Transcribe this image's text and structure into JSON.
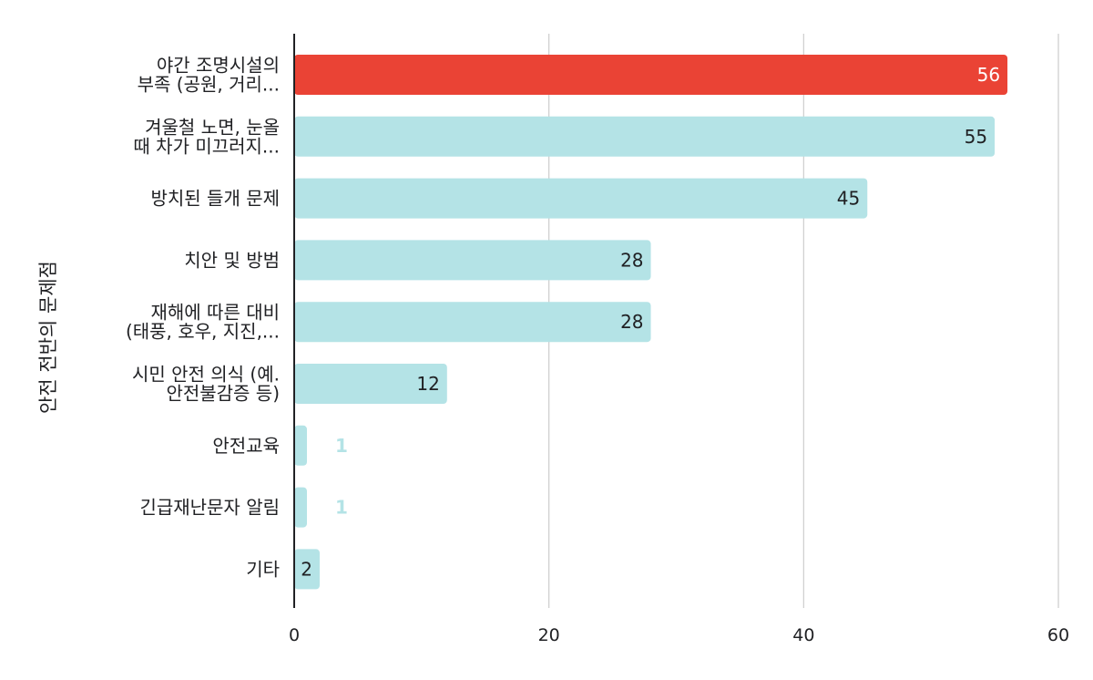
{
  "chart_data": {
    "type": "bar",
    "orientation": "horizontal",
    "title": "",
    "xlabel": "",
    "ylabel": "안전 전반의 문제점",
    "xlim": [
      0,
      60
    ],
    "xticks": [
      0,
      20,
      40,
      60
    ],
    "grid": true,
    "legend": "none",
    "categories": [
      [
        "야간 조명시설의",
        "부족 (공원, 거리..."
      ],
      [
        "겨울철 노면, 눈올",
        "때 차가 미끄러지..."
      ],
      [
        "방치된 들개 문제"
      ],
      [
        "치안 및 방범"
      ],
      [
        "재해에 따른 대비",
        "(태풍, 호우, 지진,..."
      ],
      [
        "시민 안전 의식 (예.",
        "안전불감증 등)"
      ],
      [
        "안전교육"
      ],
      [
        "긴급재난문자 알림"
      ],
      [
        "기타"
      ]
    ],
    "values": [
      56,
      55,
      45,
      28,
      28,
      12,
      1,
      1,
      2
    ],
    "highlight_index": 0,
    "colors": {
      "highlight": "#ea4335",
      "bar": "#b4e3e6",
      "label_on_highlight": "#ffffff",
      "label_inside": "#202124",
      "label_outside": "#b4e3e6",
      "grid": "#cccccc",
      "axis": "#202124",
      "text": "#202124"
    }
  }
}
